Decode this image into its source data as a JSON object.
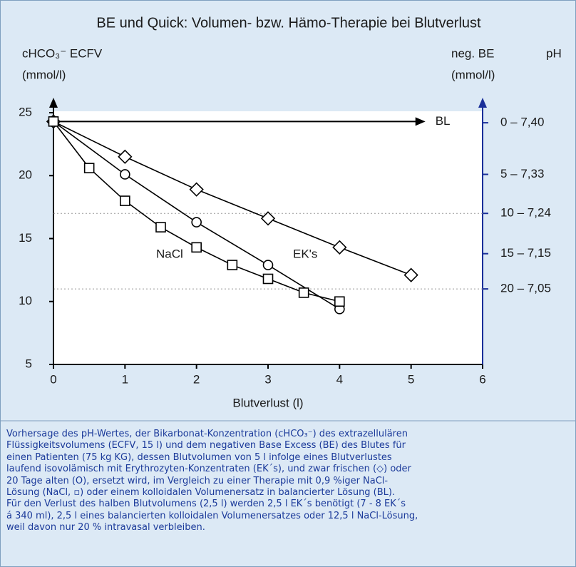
{
  "chart_data": {
    "type": "line",
    "title": "BE und Quick: Volumen- bzw. Hämo-Therapie bei Blutverlust",
    "y_label": [
      "cHCO₃⁻ ECFV",
      "(mmol/l)"
    ],
    "y2_label": [
      "neg. BE",
      "(mmol/l)"
    ],
    "y2_label_2": "pH",
    "x_label": "Blutverlust (l)",
    "xlim": [
      0,
      6
    ],
    "xticks": [
      0,
      1,
      2,
      3,
      4,
      5,
      6
    ],
    "ylim": [
      5,
      25
    ],
    "yticks": [
      5,
      10,
      15,
      20,
      25
    ],
    "y2lim": [
      5,
      25
    ],
    "y2ticks": [
      {
        "value": 24.2,
        "label": "0 – 7,40"
      },
      {
        "value": 20.1,
        "label": "5 – 7,33"
      },
      {
        "value": 17.0,
        "label": "10 – 7,24"
      },
      {
        "value": 13.8,
        "label": "15 – 7,15"
      },
      {
        "value": 11.0,
        "label": "20 – 7,05"
      }
    ],
    "grid_y2": [
      17.0,
      11.0
    ],
    "arrow": {
      "name": "BL",
      "x": [
        0,
        5.2
      ],
      "values": [
        24.3,
        24.3
      ],
      "color": "#000000"
    },
    "series": [
      {
        "marker": "diamond",
        "color": "#000000",
        "x": [
          0,
          1,
          2,
          3,
          4,
          5
        ],
        "values": [
          24.3,
          21.5,
          18.9,
          16.6,
          14.3,
          12.1
        ]
      },
      {
        "name": "EK's",
        "marker": "circle",
        "color": "#000000",
        "x": [
          0,
          1,
          2,
          3,
          4
        ],
        "values": [
          24.3,
          20.1,
          16.3,
          12.9,
          9.4
        ]
      },
      {
        "name": "NaCl",
        "marker": "square",
        "color": "#000000",
        "x": [
          0,
          0.5,
          1,
          1.5,
          2,
          2.5,
          3,
          3.5,
          4
        ],
        "values": [
          24.3,
          20.6,
          18.0,
          15.9,
          14.3,
          12.9,
          11.8,
          10.7,
          10.0
        ]
      }
    ]
  },
  "caption": [
    "Vorhersage des pH-Wertes, der Bikarbonat-Konzentration (cHCO₃⁻) des extrazellulären",
    "Flüssigkeitsvolumens (ECFV, 15 l) und dem negativen Base Excess (BE) des Blutes für",
    "einen Patienten (75 kg KG), dessen Blutvolumen von 5 l infolge eines Blutverlustes",
    "laufend isovolämisch mit Erythrozyten-Konzentraten (EK´s), und zwar frischen (◇) oder",
    "20 Tage alten (O), ersetzt wird, im Vergleich zu einer Therapie mit 0,9 %iger NaCl-",
    "Lösung (NaCl, ▫) oder einem kolloidalen Volumenersatz in balancierter Lösung (BL).",
    "Für den Verlust des halben Blutvolumens (2,5 l) werden 2,5 l EK´s benötigt (7 - 8 EK´s",
    "á 340 ml), 2,5 l eines balancierten kolloidalen Volumenersatzes oder 12,5 l NaCl-Lösung,",
    "weil davon nur 20 % intravasal verbleiben."
  ]
}
